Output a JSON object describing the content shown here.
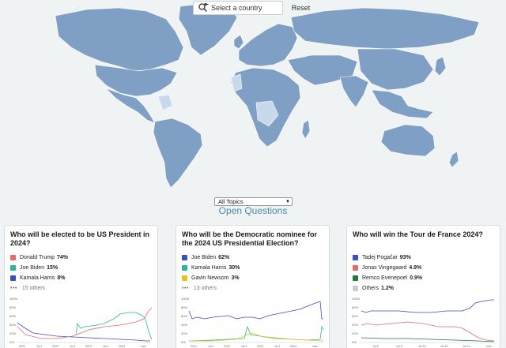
{
  "map": {
    "land_color": "#7f9fc4",
    "highlight_color": "#c9d8ea",
    "background": "#eff3f4"
  },
  "search": {
    "placeholder": "Select a country",
    "icon": "magnifier-flag-icon"
  },
  "reset_label": "Reset",
  "topic_select": {
    "selected": "All Topics"
  },
  "section_title": "Open Questions",
  "cards": [
    {
      "title": "Who will be elected to be US President in 2024?",
      "legend": [
        {
          "name": "Donald Trump",
          "pct": "74%",
          "color": "#e56a6a"
        },
        {
          "name": "Joe Biden",
          "pct": "15%",
          "color": "#2bb796"
        },
        {
          "name": "Kamala Harris",
          "pct": "8%",
          "color": "#3a4fbf"
        }
      ],
      "others": "15 others",
      "chart": {
        "yticks": [
          "100%",
          "80%",
          "60%",
          "40%",
          "20%",
          "0%"
        ],
        "xticks": [
          "2021",
          "Jul 1",
          "2022",
          "Jul 1",
          "2023",
          "Jul 1",
          "2024",
          "now"
        ]
      }
    },
    {
      "title": "Who will be the Democratic nominee for the 2024 US Presidential Election?",
      "legend": [
        {
          "name": "Joe Biden",
          "pct": "62%",
          "color": "#3a4fbf"
        },
        {
          "name": "Kamala Harris",
          "pct": "30%",
          "color": "#2bb796"
        },
        {
          "name": "Gavin Newsom",
          "pct": "3%",
          "color": "#e8c21c"
        }
      ],
      "others": "13 others",
      "chart": {
        "yticks": [
          "100%",
          "80%",
          "60%",
          "40%",
          "20%",
          "0%"
        ],
        "xticks": [
          "2021",
          "Jul 1",
          "2022",
          "Jul 1",
          "2023",
          "Jul 1",
          "2024",
          "now"
        ]
      }
    },
    {
      "title": "Who will win the Tour de France 2024?",
      "legend": [
        {
          "name": "Tadej Pogačar",
          "pct": "93%",
          "color": "#3a4fbf"
        },
        {
          "name": "Jonas Vingegaard",
          "pct": "4.9%",
          "color": "#e56a6a"
        },
        {
          "name": "Remco Evenepoel",
          "pct": "0.9%",
          "color": "#1f7a3a"
        },
        {
          "name": "Others",
          "pct": "1.2%",
          "color": "#cccccc"
        }
      ],
      "others": "",
      "chart": {
        "yticks": [
          "100%",
          "80%",
          "60%",
          "40%",
          "20%",
          "0%"
        ],
        "xticks": [
          "Jul 6",
          "Jul 8",
          "Jul 10",
          "Jul 12",
          "Jul 14",
          "now"
        ]
      }
    }
  ]
}
